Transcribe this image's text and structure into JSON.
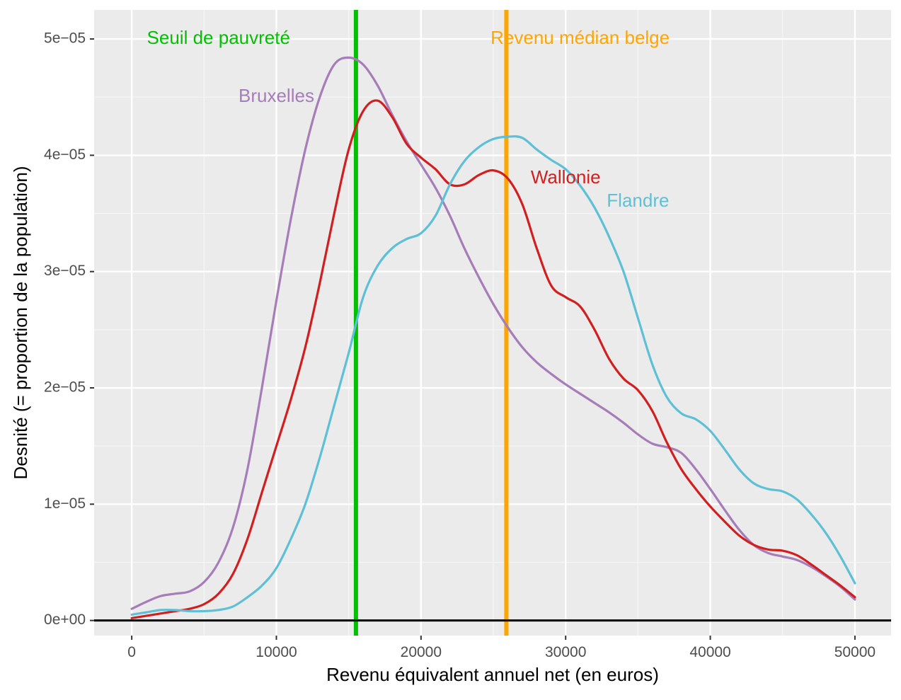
{
  "chart_data": {
    "type": "line",
    "xlabel": "Revenu équivalent annuel net (en euros)",
    "ylabel": "Desnité (= proportion de la population)",
    "xlim": [
      -2600,
      52500
    ],
    "ylim": [
      -1.3e-06,
      5.25e-05
    ],
    "x_ticks": [
      0,
      10000,
      20000,
      30000,
      40000,
      50000
    ],
    "x_tick_labels": [
      "0",
      "10000",
      "20000",
      "30000",
      "40000",
      "50000"
    ],
    "y_ticks": [
      0,
      1e-05,
      2e-05,
      3e-05,
      4e-05,
      5e-05
    ],
    "y_tick_labels": [
      "0e+00",
      "1e−05",
      "2e−05",
      "3e−05",
      "4e−05",
      "5e−05"
    ],
    "grid": true,
    "legend": "none",
    "background": "#ebebeb",
    "series": [
      {
        "name": "Bruxelles",
        "color": "#a67cb9",
        "x": [
          0,
          1000,
          2000,
          3000,
          4000,
          5000,
          6000,
          7000,
          8000,
          9000,
          10000,
          11000,
          12000,
          13000,
          14000,
          15000,
          16000,
          17000,
          18000,
          19000,
          20000,
          21000,
          22000,
          23000,
          24000,
          25000,
          26000,
          27000,
          28000,
          29000,
          30000,
          31000,
          32000,
          33000,
          34000,
          35000,
          36000,
          37000,
          38000,
          39000,
          40000,
          41000,
          42000,
          43000,
          44000,
          45000,
          46000,
          47000,
          48000,
          49000,
          50000
        ],
        "y": [
          1e-06,
          1.6e-06,
          2.1e-06,
          2.3e-06,
          2.5e-06,
          3.3e-06,
          5e-06,
          8e-06,
          1.3e-05,
          2e-05,
          2.75e-05,
          3.45e-05,
          4.05e-05,
          4.5e-05,
          4.78e-05,
          4.84e-05,
          4.78e-05,
          4.6e-05,
          4.35e-05,
          4.12e-05,
          3.92e-05,
          3.72e-05,
          3.48e-05,
          3.2e-05,
          2.95e-05,
          2.72e-05,
          2.52e-05,
          2.35e-05,
          2.22e-05,
          2.12e-05,
          2.03e-05,
          1.95e-05,
          1.87e-05,
          1.79e-05,
          1.7e-05,
          1.6e-05,
          1.52e-05,
          1.49e-05,
          1.44e-05,
          1.3e-05,
          1.13e-05,
          9.5e-06,
          7.8e-06,
          6.5e-06,
          5.8e-06,
          5.5e-06,
          5.2e-06,
          4.6e-06,
          3.8e-06,
          2.9e-06,
          1.8e-06
        ]
      },
      {
        "name": "Wallonie",
        "color": "#d11f1f",
        "x": [
          0,
          1000,
          2000,
          3000,
          4000,
          5000,
          6000,
          7000,
          8000,
          9000,
          10000,
          11000,
          12000,
          13000,
          14000,
          15000,
          16000,
          17000,
          18000,
          19000,
          20000,
          21000,
          22000,
          23000,
          24000,
          25000,
          26000,
          27000,
          28000,
          29000,
          30000,
          31000,
          32000,
          33000,
          34000,
          35000,
          36000,
          37000,
          38000,
          39000,
          40000,
          41000,
          42000,
          43000,
          44000,
          45000,
          46000,
          47000,
          48000,
          49000,
          50000
        ],
        "y": [
          2e-07,
          4e-07,
          6e-07,
          8e-07,
          1e-06,
          1.4e-06,
          2.3e-06,
          4e-06,
          7e-06,
          1.1e-05,
          1.5e-05,
          1.9e-05,
          2.35e-05,
          2.9e-05,
          3.5e-05,
          4.05e-05,
          4.38e-05,
          4.47e-05,
          4.33e-05,
          4.1e-05,
          3.98e-05,
          3.88e-05,
          3.75e-05,
          3.75e-05,
          3.83e-05,
          3.87e-05,
          3.8e-05,
          3.58e-05,
          3.2e-05,
          2.88e-05,
          2.78e-05,
          2.7e-05,
          2.5e-05,
          2.25e-05,
          2.08e-05,
          1.98e-05,
          1.8e-05,
          1.53e-05,
          1.3e-05,
          1.13e-05,
          9.8e-06,
          8.5e-06,
          7.3e-06,
          6.5e-06,
          6.1e-06,
          6e-06,
          5.6e-06,
          4.8e-06,
          3.9e-06,
          3e-06,
          2e-06
        ]
      },
      {
        "name": "Flandre",
        "color": "#5ec0d6",
        "x": [
          0,
          1000,
          2000,
          3000,
          4000,
          5000,
          6000,
          7000,
          8000,
          9000,
          10000,
          11000,
          12000,
          13000,
          14000,
          15000,
          16000,
          17000,
          18000,
          19000,
          20000,
          21000,
          22000,
          23000,
          24000,
          25000,
          26000,
          27000,
          28000,
          29000,
          30000,
          31000,
          32000,
          33000,
          34000,
          35000,
          36000,
          37000,
          38000,
          39000,
          40000,
          41000,
          42000,
          43000,
          44000,
          45000,
          46000,
          47000,
          48000,
          49000,
          50000
        ],
        "y": [
          5e-07,
          7e-07,
          9e-07,
          9e-07,
          8e-07,
          8e-07,
          9e-07,
          1.2e-06,
          2e-06,
          3e-06,
          4.5e-06,
          7e-06,
          1e-05,
          1.4e-05,
          1.85e-05,
          2.3e-05,
          2.78e-05,
          3.05e-05,
          3.2e-05,
          3.28e-05,
          3.33e-05,
          3.48e-05,
          3.75e-05,
          3.95e-05,
          4.07e-05,
          4.14e-05,
          4.16e-05,
          4.15e-05,
          4.05e-05,
          3.96e-05,
          3.88e-05,
          3.74e-05,
          3.55e-05,
          3.3e-05,
          3e-05,
          2.6e-05,
          2.2e-05,
          1.92e-05,
          1.78e-05,
          1.73e-05,
          1.63e-05,
          1.47e-05,
          1.3e-05,
          1.18e-05,
          1.13e-05,
          1.11e-05,
          1.04e-05,
          9.1e-06,
          7.5e-06,
          5.5e-06,
          3.2e-06
        ]
      }
    ],
    "vertical_lines": [
      {
        "x": 15500,
        "color": "#00c000",
        "label": "Seuil de pauvreté"
      },
      {
        "x": 25900,
        "color": "#ffa500",
        "label": "Revenu médian belge"
      }
    ],
    "hline": {
      "y": 0,
      "color": "#000000"
    },
    "annotations": [
      {
        "text": "Seuil de pauvreté",
        "x": 6000,
        "y": 5e-05,
        "color": "#00c000"
      },
      {
        "text": "Revenu médian belge",
        "x": 31000,
        "y": 5e-05,
        "color": "#ffa500"
      },
      {
        "text": "Bruxelles",
        "x": 10000,
        "y": 4.5e-05,
        "color": "#a67cb9"
      },
      {
        "text": "Wallonie",
        "x": 30000,
        "y": 3.8e-05,
        "color": "#d11f1f"
      },
      {
        "text": "Flandre",
        "x": 35000,
        "y": 3.6e-05,
        "color": "#5ec0d6"
      }
    ]
  }
}
